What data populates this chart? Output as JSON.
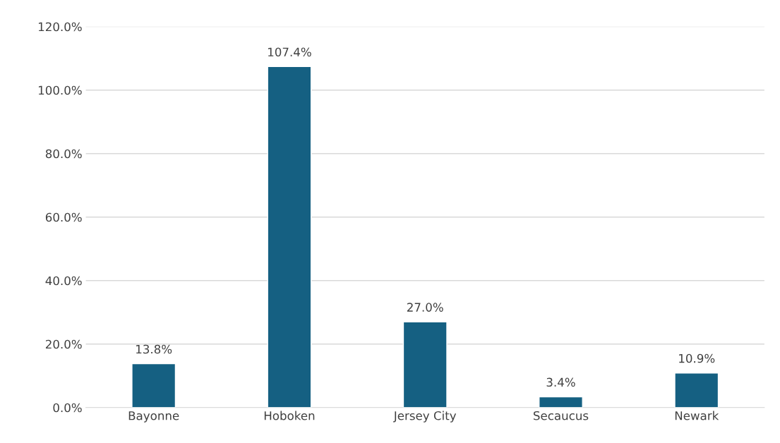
{
  "chart_data": {
    "type": "bar",
    "categories": [
      "Bayonne",
      "Hoboken",
      "Jersey City",
      "Secaucus",
      "Newark"
    ],
    "values": [
      13.8,
      107.4,
      27.0,
      3.4,
      10.9
    ],
    "value_labels": [
      "13.8%",
      "107.4%",
      "27.0%",
      "3.4%",
      "10.9%"
    ],
    "color": "#156082",
    "ylim": [
      0,
      120
    ],
    "yticks": [
      {
        "value": 0,
        "label": "0.0%"
      },
      {
        "value": 20,
        "label": "20.0%"
      },
      {
        "value": 40,
        "label": "40.0%"
      },
      {
        "value": 60,
        "label": "60.0%"
      },
      {
        "value": 80,
        "label": "80.0%"
      },
      {
        "value": 100,
        "label": "100.0%"
      },
      {
        "value": 120,
        "label": "120.0%"
      }
    ],
    "grid": "y"
  }
}
